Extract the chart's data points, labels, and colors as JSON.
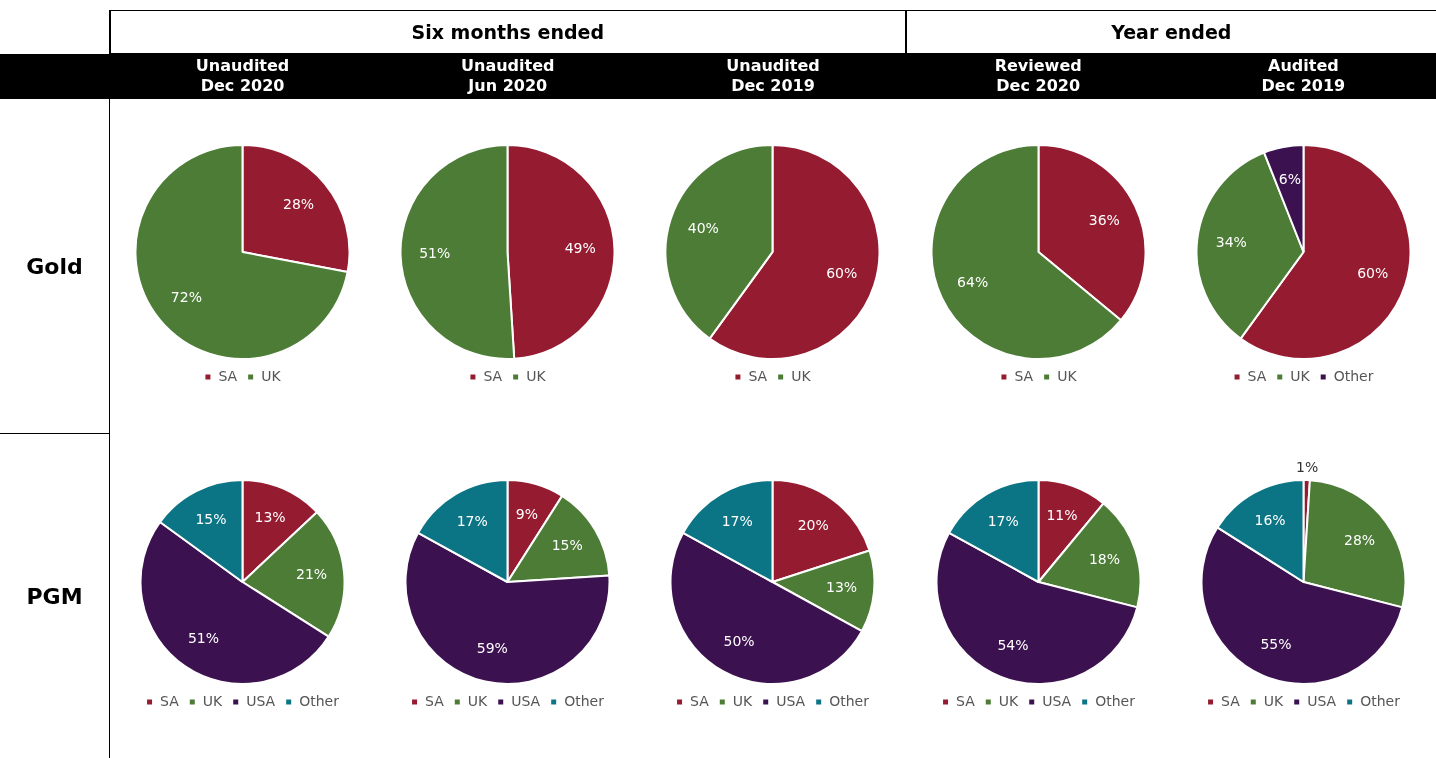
{
  "chart_data": [
    {
      "type": "pie",
      "title": "Unaudited\nDec 2020",
      "ylabel": "Gold",
      "annotations": [
        "Six months ended"
      ],
      "categories": [
        "SA",
        "UK"
      ],
      "values": [
        28,
        72
      ],
      "value_labels": [
        "28%",
        "72%"
      ],
      "colors": [
        "#951b31",
        "#4d7c37"
      ],
      "legend": "bottom"
    },
    {
      "type": "pie",
      "title": "Unaudited\nJun 2020",
      "categories": [
        "SA",
        "UK"
      ],
      "values": [
        49,
        51
      ],
      "value_labels": [
        "49%",
        "51%"
      ],
      "colors": [
        "#951b31",
        "#4d7c37"
      ],
      "legend": "bottom"
    },
    {
      "type": "pie",
      "title": "Unaudited\nDec 2019",
      "categories": [
        "SA",
        "UK"
      ],
      "values": [
        60,
        40
      ],
      "value_labels": [
        "60%",
        "40%"
      ],
      "colors": [
        "#951b31",
        "#4d7c37"
      ],
      "legend": "bottom"
    },
    {
      "type": "pie",
      "title": "Reviewed\nDec 2020",
      "annotations": [
        "Year ended"
      ],
      "categories": [
        "SA",
        "UK"
      ],
      "values": [
        36,
        64
      ],
      "value_labels": [
        "36%",
        "64%"
      ],
      "colors": [
        "#951b31",
        "#4d7c37"
      ],
      "legend": "bottom"
    },
    {
      "type": "pie",
      "title": "Audited\nDec 2019",
      "categories": [
        "SA",
        "UK",
        "Other"
      ],
      "values": [
        60,
        34,
        6
      ],
      "value_labels": [
        "60%",
        "34%",
        "6%"
      ],
      "colors": [
        "#951b31",
        "#4d7c37",
        "#3c1150"
      ],
      "legend": "bottom"
    },
    {
      "type": "pie",
      "ylabel": "PGM",
      "categories": [
        "SA",
        "UK",
        "USA",
        "Other"
      ],
      "values": [
        13,
        21,
        51,
        15
      ],
      "value_labels": [
        "13%",
        "21%",
        "51%",
        "15%"
      ],
      "colors": [
        "#951b31",
        "#4d7c37",
        "#3c1150",
        "#0b7485"
      ],
      "legend": "bottom"
    },
    {
      "type": "pie",
      "categories": [
        "SA",
        "UK",
        "USA",
        "Other"
      ],
      "values": [
        9,
        15,
        59,
        17
      ],
      "value_labels": [
        "9%",
        "15%",
        "59%",
        "17%"
      ],
      "colors": [
        "#951b31",
        "#4d7c37",
        "#3c1150",
        "#0b7485"
      ],
      "legend": "bottom"
    },
    {
      "type": "pie",
      "categories": [
        "SA",
        "UK",
        "USA",
        "Other"
      ],
      "values": [
        20,
        13,
        50,
        17
      ],
      "value_labels": [
        "20%",
        "13%",
        "50%",
        "17%"
      ],
      "colors": [
        "#951b31",
        "#4d7c37",
        "#3c1150",
        "#0b7485"
      ],
      "legend": "bottom"
    },
    {
      "type": "pie",
      "categories": [
        "SA",
        "UK",
        "USA",
        "Other"
      ],
      "values": [
        11,
        18,
        54,
        17
      ],
      "value_labels": [
        "11%",
        "18%",
        "54%",
        "17%"
      ],
      "colors": [
        "#951b31",
        "#4d7c37",
        "#3c1150",
        "#0b7485"
      ],
      "legend": "bottom"
    },
    {
      "type": "pie",
      "categories": [
        "SA",
        "UK",
        "USA",
        "Other"
      ],
      "values": [
        1,
        28,
        55,
        16
      ],
      "value_labels": [
        "1%",
        "28%",
        "55%",
        "16%"
      ],
      "colors": [
        "#951b31",
        "#4d7c37",
        "#3c1150",
        "#0b7485"
      ],
      "legend": "bottom"
    }
  ]
}
